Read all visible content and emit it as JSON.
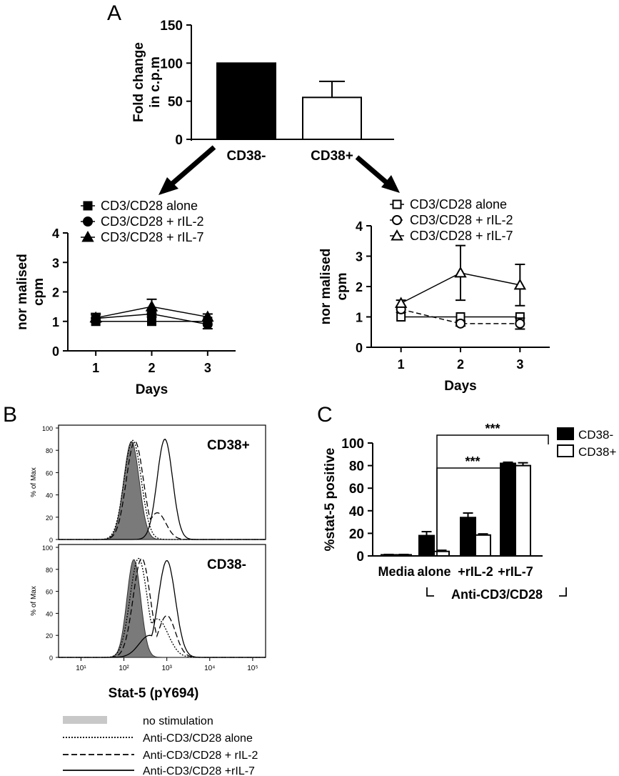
{
  "panel_labels": {
    "a": "A",
    "b": "B",
    "c": "C"
  },
  "chart_data": [
    {
      "id": "A-top",
      "type": "bar",
      "ylabel_lines": [
        "Fold change",
        "in c.p.m"
      ],
      "categories": [
        "CD38-",
        "CD38+"
      ],
      "values": [
        100,
        55
      ],
      "errors": [
        0,
        21
      ],
      "fills": [
        "#000000",
        "#ffffff"
      ],
      "ylim": [
        0,
        150
      ],
      "yticks": [
        0,
        50,
        100,
        150
      ]
    },
    {
      "id": "A-left",
      "type": "line",
      "ylabel_lines": [
        "nor malised",
        "cpm"
      ],
      "xlabel": "Days",
      "x": [
        1,
        2,
        3
      ],
      "xlim": [
        0.5,
        3.5
      ],
      "ylim": [
        0,
        4
      ],
      "yticks": [
        0,
        1,
        2,
        3,
        4
      ],
      "series": [
        {
          "name": "CD3/CD28 alone",
          "marker": "square",
          "filled": true,
          "dash": false,
          "values": [
            1.0,
            1.0,
            1.0
          ],
          "errors": [
            0,
            0,
            0
          ]
        },
        {
          "name": "CD3/CD28 + rIL-2",
          "marker": "circle",
          "filled": true,
          "dash": false,
          "values": [
            1.1,
            1.25,
            0.9
          ],
          "errors": [
            0.12,
            0.1,
            0.15
          ]
        },
        {
          "name": "CD3/CD28 + rIL-7",
          "marker": "triangle",
          "filled": true,
          "dash": false,
          "values": [
            1.12,
            1.5,
            1.15
          ],
          "errors": [
            0.15,
            0.25,
            0.1
          ]
        }
      ]
    },
    {
      "id": "A-right",
      "type": "line",
      "ylabel_lines": [
        "nor malised",
        "cpm"
      ],
      "xlabel": "Days",
      "x": [
        1,
        2,
        3
      ],
      "xlim": [
        0.5,
        3.5
      ],
      "ylim": [
        0,
        4
      ],
      "yticks": [
        0,
        1,
        2,
        3,
        4
      ],
      "series": [
        {
          "name": "CD3/CD28 alone",
          "marker": "square",
          "filled": false,
          "dash": false,
          "values": [
            1.0,
            1.0,
            1.0
          ],
          "errors": [
            0,
            0,
            0
          ]
        },
        {
          "name": "CD3/CD28 + rIL-2",
          "marker": "circle",
          "filled": false,
          "dash": true,
          "values": [
            1.25,
            0.78,
            0.78
          ],
          "errors": [
            0.1,
            0.08,
            0.18
          ]
        },
        {
          "name": "CD3/CD28 + rIL-7",
          "marker": "triangle",
          "filled": false,
          "dash": false,
          "values": [
            1.45,
            2.45,
            2.05
          ],
          "errors": [
            0.1,
            0.9,
            0.68
          ]
        }
      ]
    },
    {
      "id": "B",
      "type": "histogram",
      "xlabel": "Stat-5 (pY694)",
      "ylabel": "% of Max",
      "xscale": "log",
      "xlim": [
        3,
        200000
      ],
      "xtick_labels": [
        "10¹",
        "10²",
        "10³",
        "10⁴",
        "10⁵"
      ],
      "xtick_values": [
        10,
        100,
        1000,
        10000,
        100000
      ],
      "ylim": [
        0,
        100
      ],
      "yticks": [
        0,
        20,
        40,
        60,
        80,
        100
      ],
      "panels": [
        {
          "label": "CD38+",
          "curves": [
            {
              "name": "no stimulation",
              "style": "filled",
              "mode": 150,
              "width": 0.18,
              "height": 88
            },
            {
              "name": "Anti-CD3/CD28 alone",
              "style": "dotted",
              "mode": 160,
              "width": 0.2,
              "height": 89
            },
            {
              "name": "Anti-CD3/CD28 + rIL-2",
              "style": "dashed",
              "mode": 180,
              "width": 0.2,
              "height": 88,
              "mode2": 600,
              "width2": 0.2,
              "height2": 24
            },
            {
              "name": "Anti-CD3/CD28 +rIL-7",
              "style": "solid",
              "mode": 900,
              "width": 0.18,
              "height": 90
            }
          ]
        },
        {
          "label": "CD38-",
          "curves": [
            {
              "name": "no stimulation",
              "style": "filled",
              "mode": 170,
              "width": 0.16,
              "height": 89
            },
            {
              "name": "Anti-CD3/CD28 alone",
              "style": "dotted",
              "mode": 220,
              "width": 0.2,
              "height": 90,
              "mode2": 600,
              "width2": 0.25,
              "height2": 35
            },
            {
              "name": "Anti-CD3/CD28 + rIL-2",
              "style": "dashed",
              "mode": 260,
              "width": 0.2,
              "height": 90,
              "mode2": 1000,
              "width2": 0.2,
              "height2": 38
            },
            {
              "name": "Anti-CD3/CD28 +rIL-7",
              "style": "solid",
              "mode": 1000,
              "width": 0.2,
              "height": 88,
              "mode2": 400,
              "width2": 0.25,
              "height2": 20
            }
          ]
        }
      ]
    },
    {
      "id": "C",
      "type": "bar",
      "ylabel": "%stat-5 positive",
      "categories": [
        "Media",
        "alone",
        "+rIL-2",
        "+rIL-7"
      ],
      "group_label": "Anti-CD3/CD28",
      "ylim": [
        0,
        100
      ],
      "yticks": [
        0,
        20,
        40,
        60,
        80,
        100
      ],
      "series": [
        {
          "name": "CD38-",
          "fill": "#000000",
          "values": [
            1,
            18,
            34,
            82
          ],
          "errors": [
            0.3,
            3.5,
            4,
            1
          ]
        },
        {
          "name": "CD38+",
          "fill": "#ffffff",
          "values": [
            1,
            4,
            18.5,
            80
          ],
          "errors": [
            0.3,
            1,
            1,
            2.5
          ]
        }
      ],
      "significance": [
        "***",
        "***"
      ]
    }
  ]
}
